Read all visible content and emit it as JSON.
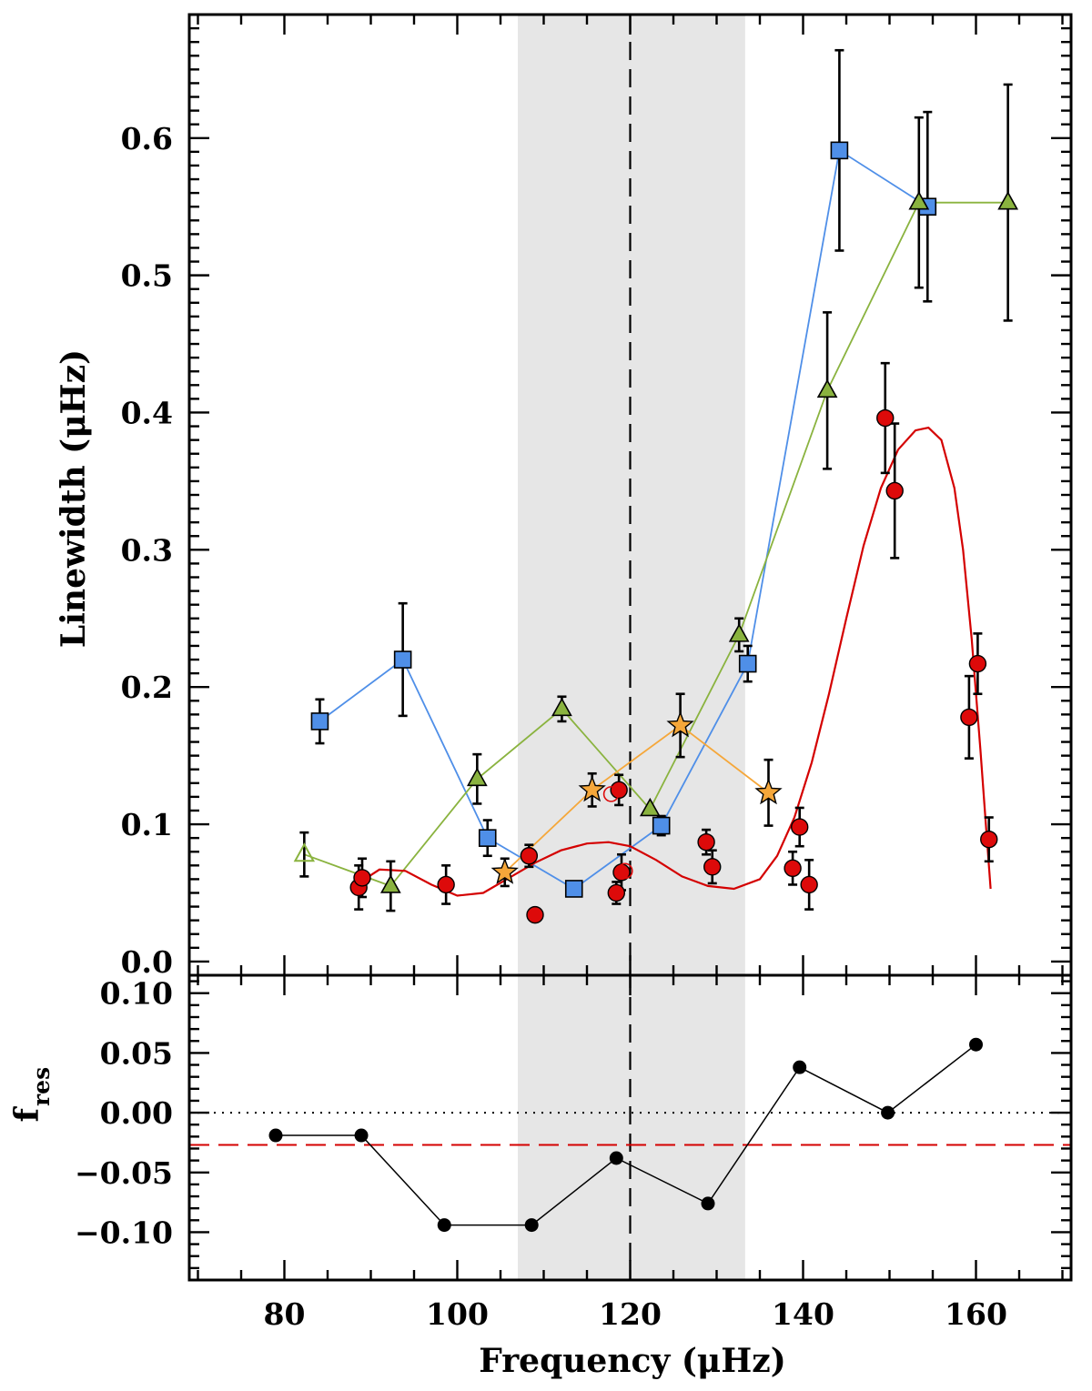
{
  "chart_data": [
    {
      "panel": "top",
      "type": "scatter",
      "xlabel": "",
      "ylabel": "Linewidth (μHz)",
      "xlim": [
        69,
        171
      ],
      "ylim": [
        -0.01,
        0.69
      ],
      "x_ticks": [
        80,
        100,
        120,
        140,
        160
      ],
      "y_ticks": [
        0.0,
        0.1,
        0.2,
        0.3,
        0.4,
        0.5,
        0.6
      ],
      "y_tick_labels": [
        "0.0",
        "0.1",
        "0.2",
        "0.3",
        "0.4",
        "0.5",
        "0.6"
      ],
      "shaded_band": {
        "x": [
          107,
          133.3
        ],
        "color": "#e6e6e6"
      },
      "vline": {
        "x": 120,
        "style": "dashed",
        "color": "#000000"
      },
      "series": [
        {
          "name": "blue squares",
          "marker": "square",
          "color": "#4f8fe8",
          "connected": true,
          "points": [
            {
              "x": 84.1,
              "y": 0.175,
              "err": 0.016
            },
            {
              "x": 93.7,
              "y": 0.22,
              "err": 0.041
            },
            {
              "x": 103.5,
              "y": 0.09,
              "err": 0.013
            },
            {
              "x": 113.5,
              "y": 0.053,
              "err": 0
            },
            {
              "x": 123.6,
              "y": 0.099,
              "err": 0.007
            },
            {
              "x": 133.6,
              "y": 0.217,
              "err": 0.013
            },
            {
              "x": 144.2,
              "y": 0.591,
              "err": 0.073
            },
            {
              "x": 154.4,
              "y": 0.55,
              "err": 0.069
            }
          ]
        },
        {
          "name": "green triangles",
          "marker": "triangle",
          "color": "#8ab33f",
          "connected": true,
          "points": [
            {
              "x": 82.3,
              "y": 0.078,
              "err": 0.016,
              "open": true
            },
            {
              "x": 92.3,
              "y": 0.055,
              "err": 0.018
            },
            {
              "x": 102.3,
              "y": 0.133,
              "err": 0.018
            },
            {
              "x": 112.1,
              "y": 0.184,
              "err": 0.009
            },
            {
              "x": 122.3,
              "y": 0.111,
              "err": 0
            },
            {
              "x": 132.6,
              "y": 0.238,
              "err": 0.012
            },
            {
              "x": 142.8,
              "y": 0.416,
              "err": 0.057
            },
            {
              "x": 153.4,
              "y": 0.553,
              "err": 0.062
            },
            {
              "x": 163.7,
              "y": 0.553,
              "err": 0.086
            }
          ]
        },
        {
          "name": "orange stars",
          "marker": "star",
          "color": "#f5a73a",
          "connected": true,
          "points": [
            {
              "x": 105.5,
              "y": 0.065,
              "err": 0.01
            },
            {
              "x": 115.6,
              "y": 0.125,
              "err": 0.012
            },
            {
              "x": 125.8,
              "y": 0.172,
              "err": 0.023
            },
            {
              "x": 136.0,
              "y": 0.123,
              "err": 0.024
            }
          ]
        },
        {
          "name": "red circles",
          "marker": "circle",
          "color": "#dd0a0a",
          "connected": false,
          "points": [
            {
              "x": 88.6,
              "y": 0.054,
              "err": 0.016
            },
            {
              "x": 89.0,
              "y": 0.061,
              "err": 0.014
            },
            {
              "x": 98.7,
              "y": 0.056,
              "err": 0.014
            },
            {
              "x": 108.3,
              "y": 0.077,
              "err": 0.008
            },
            {
              "x": 109.0,
              "y": 0.034,
              "err": 0
            },
            {
              "x": 118.4,
              "y": 0.05,
              "err": 0.008
            },
            {
              "x": 118.7,
              "y": 0.125,
              "err": 0.011
            },
            {
              "x": 119.0,
              "y": 0.065,
              "err": 0.013
            },
            {
              "x": 128.8,
              "y": 0.087,
              "err": 0.009
            },
            {
              "x": 129.5,
              "y": 0.069,
              "err": 0.012
            },
            {
              "x": 138.8,
              "y": 0.068,
              "err": 0.012
            },
            {
              "x": 139.6,
              "y": 0.098,
              "err": 0.014
            },
            {
              "x": 140.7,
              "y": 0.056,
              "err": 0.018
            },
            {
              "x": 149.5,
              "y": 0.396,
              "err": 0.04
            },
            {
              "x": 150.6,
              "y": 0.343,
              "err": 0.049
            },
            {
              "x": 159.2,
              "y": 0.178,
              "err": 0.03
            },
            {
              "x": 160.2,
              "y": 0.217,
              "err": 0.022
            },
            {
              "x": 161.5,
              "y": 0.089,
              "err": 0.016
            }
          ]
        },
        {
          "name": "red open circles",
          "marker": "open-circle",
          "color": "#dd0a0a",
          "connected": false,
          "points": [
            {
              "x": 117.8,
              "y": 0.122
            },
            {
              "x": 119.4,
              "y": 0.066
            }
          ]
        },
        {
          "name": "red fit curve",
          "type": "line",
          "color": "#d40000",
          "points": [
            {
              "x": 88.8,
              "y": 0.058
            },
            {
              "x": 91.0,
              "y": 0.067
            },
            {
              "x": 94.0,
              "y": 0.066
            },
            {
              "x": 97.0,
              "y": 0.056
            },
            {
              "x": 100.0,
              "y": 0.048
            },
            {
              "x": 103.0,
              "y": 0.05
            },
            {
              "x": 106.0,
              "y": 0.061
            },
            {
              "x": 109.0,
              "y": 0.072
            },
            {
              "x": 112.0,
              "y": 0.081
            },
            {
              "x": 115.0,
              "y": 0.086
            },
            {
              "x": 117.5,
              "y": 0.087
            },
            {
              "x": 120.0,
              "y": 0.084
            },
            {
              "x": 123.0,
              "y": 0.074
            },
            {
              "x": 126.0,
              "y": 0.062
            },
            {
              "x": 129.0,
              "y": 0.055
            },
            {
              "x": 132.0,
              "y": 0.053
            },
            {
              "x": 135.0,
              "y": 0.06
            },
            {
              "x": 137.0,
              "y": 0.077
            },
            {
              "x": 139.0,
              "y": 0.105
            },
            {
              "x": 141.0,
              "y": 0.145
            },
            {
              "x": 143.0,
              "y": 0.195
            },
            {
              "x": 145.0,
              "y": 0.25
            },
            {
              "x": 147.0,
              "y": 0.303
            },
            {
              "x": 149.0,
              "y": 0.345
            },
            {
              "x": 151.0,
              "y": 0.373
            },
            {
              "x": 153.0,
              "y": 0.387
            },
            {
              "x": 154.5,
              "y": 0.389
            },
            {
              "x": 156.0,
              "y": 0.38
            },
            {
              "x": 157.5,
              "y": 0.345
            },
            {
              "x": 158.5,
              "y": 0.3
            },
            {
              "x": 159.5,
              "y": 0.235
            },
            {
              "x": 160.5,
              "y": 0.155
            },
            {
              "x": 161.2,
              "y": 0.095
            },
            {
              "x": 161.7,
              "y": 0.053
            }
          ]
        }
      ]
    },
    {
      "panel": "bottom",
      "type": "line",
      "xlabel": "Frequency (μHz)",
      "ylabel": "f_res",
      "xlim": [
        69,
        171
      ],
      "ylim": [
        -0.14,
        0.115
      ],
      "x_ticks": [
        80,
        100,
        120,
        140,
        160
      ],
      "x_tick_labels": [
        "80",
        "100",
        "120",
        "140",
        "160"
      ],
      "y_ticks": [
        0.1,
        0.05,
        0.0,
        -0.05,
        -0.1
      ],
      "y_tick_labels": [
        "0.10",
        "0.05",
        "0.00",
        "−0.05",
        "−0.10"
      ],
      "hlines": [
        {
          "y": 0.0,
          "style": "dotted",
          "color": "#000000"
        },
        {
          "y": -0.027,
          "style": "dashed",
          "color": "#d40000"
        }
      ],
      "series": [
        {
          "name": "f_res residuals",
          "marker": "circle",
          "color": "#000000",
          "points": [
            {
              "x": 79,
              "y": -0.019
            },
            {
              "x": 88.9,
              "y": -0.019
            },
            {
              "x": 98.5,
              "y": -0.094
            },
            {
              "x": 108.6,
              "y": -0.094
            },
            {
              "x": 118.4,
              "y": -0.038
            },
            {
              "x": 129.0,
              "y": -0.076
            },
            {
              "x": 139.6,
              "y": 0.038
            },
            {
              "x": 149.8,
              "y": 0.0
            },
            {
              "x": 160.0,
              "y": 0.057
            }
          ]
        }
      ]
    }
  ],
  "labels": {
    "ylabel_top": "Linewidth (μHz)",
    "ylabel_bottom_main": "f",
    "ylabel_bottom_sub": "res",
    "xlabel": "Frequency (μHz)"
  }
}
